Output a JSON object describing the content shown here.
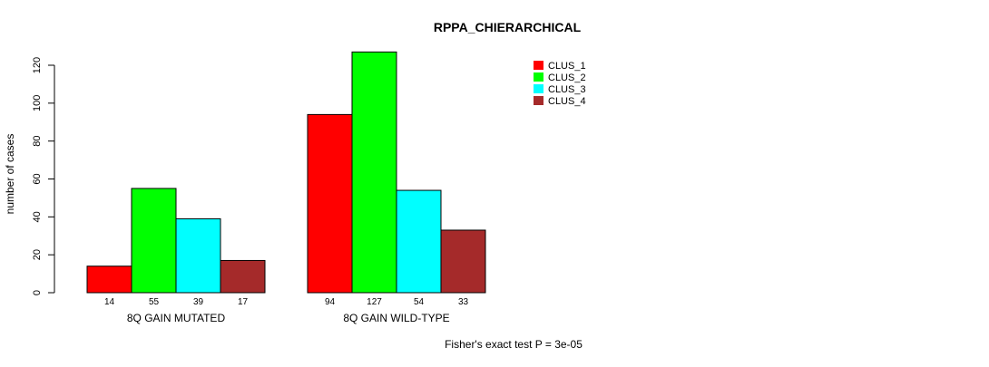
{
  "chart_data": {
    "type": "bar",
    "title": "RPPA_CHIERARCHICAL",
    "ylabel": "number of cases",
    "xlabel": "",
    "ylim": [
      0,
      120
    ],
    "yticks": [
      0,
      20,
      40,
      60,
      80,
      100,
      120
    ],
    "categories": [
      "8Q GAIN MUTATED",
      "8Q GAIN WILD-TYPE"
    ],
    "series": [
      {
        "name": "CLUS_1",
        "color": "#FF0000",
        "values": [
          14,
          94
        ]
      },
      {
        "name": "CLUS_2",
        "color": "#00FF00",
        "values": [
          55,
          127
        ]
      },
      {
        "name": "CLUS_3",
        "color": "#00FFFF",
        "values": [
          39,
          54
        ]
      },
      {
        "name": "CLUS_4",
        "color": "#A52A2A",
        "values": [
          17,
          33
        ]
      }
    ],
    "legend_position": "top-right",
    "annotation": "Fisher's exact test P = 3e-05"
  }
}
